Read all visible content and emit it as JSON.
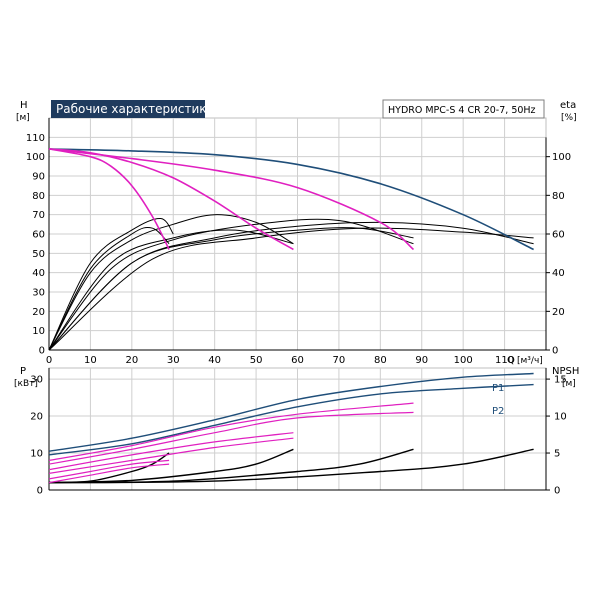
{
  "chart_data": [
    {
      "type": "line",
      "title": "Рабочие характеристики",
      "model": "HYDRO MPC-S 4 CR 20-7, 50Hz",
      "ylabel_left": "H",
      "ylabel_left_unit": "[м]",
      "ylabel_right": "eta",
      "ylabel_right_unit": "[%]",
      "xlabel": "Q",
      "xlabel_unit": "[м³/ч]",
      "xlim": [
        0,
        120
      ],
      "xticks": [
        0,
        10,
        20,
        30,
        40,
        50,
        60,
        70,
        80,
        90,
        100,
        110
      ],
      "ylim_left": [
        0,
        120
      ],
      "yticks_left": [
        0,
        10,
        20,
        30,
        40,
        50,
        60,
        70,
        80,
        90,
        100,
        110
      ],
      "ylim_right": [
        0,
        120
      ],
      "yticks_right": [
        0,
        20,
        40,
        60,
        80,
        100
      ],
      "grid": true,
      "head_series": [
        {
          "color": "#1f4e79",
          "points": [
            [
              0,
              104
            ],
            [
              20,
              103
            ],
            [
              40,
              101
            ],
            [
              60,
              96
            ],
            [
              80,
              86
            ],
            [
              100,
              70
            ],
            [
              117,
              52
            ]
          ]
        },
        {
          "color": "#e020c0",
          "points": [
            [
              0,
              104
            ],
            [
              20,
              99
            ],
            [
              40,
              93
            ],
            [
              60,
              84
            ],
            [
              80,
              66
            ],
            [
              88,
              52
            ]
          ]
        },
        {
          "color": "#e020c0",
          "points": [
            [
              0,
              104
            ],
            [
              10,
              102
            ],
            [
              20,
              97
            ],
            [
              30,
              89
            ],
            [
              40,
              77
            ],
            [
              50,
              63
            ],
            [
              59,
              52
            ]
          ]
        },
        {
          "color": "#e020c0",
          "points": [
            [
              0,
              104
            ],
            [
              10,
              100
            ],
            [
              15,
              95
            ],
            [
              20,
              85
            ],
            [
              25,
              69
            ],
            [
              29,
              52
            ]
          ]
        }
      ],
      "efficiency_series": [
        {
          "color": "#000000",
          "points": [
            [
              0,
              0
            ],
            [
              10,
              45
            ],
            [
              20,
              62
            ],
            [
              27,
              68
            ],
            [
              30,
              60
            ]
          ]
        },
        {
          "color": "#000000",
          "points": [
            [
              0,
              0
            ],
            [
              10,
              40
            ],
            [
              20,
              57
            ],
            [
              30,
              65
            ],
            [
              40,
              70
            ],
            [
              50,
              66
            ],
            [
              59,
              55
            ]
          ]
        },
        {
          "color": "#000000",
          "points": [
            [
              0,
              0
            ],
            [
              15,
              42
            ],
            [
              30,
              57
            ],
            [
              50,
              65
            ],
            [
              70,
              67
            ],
            [
              88,
              55
            ]
          ]
        },
        {
          "color": "#000000",
          "points": [
            [
              0,
              0
            ],
            [
              20,
              45
            ],
            [
              40,
              58
            ],
            [
              60,
              64
            ],
            [
              80,
              66
            ],
            [
              100,
              63
            ],
            [
              117,
              55
            ]
          ]
        },
        {
          "color": "#000000",
          "points": [
            [
              0,
              0
            ],
            [
              10,
              42
            ],
            [
              20,
              60
            ],
            [
              25,
              63
            ],
            [
              29,
              55
            ]
          ]
        },
        {
          "color": "#000000",
          "points": [
            [
              0,
              0
            ],
            [
              15,
              45
            ],
            [
              30,
              58
            ],
            [
              45,
              62
            ],
            [
              59,
              55
            ]
          ]
        },
        {
          "color": "#000000",
          "points": [
            [
              0,
              0
            ],
            [
              20,
              45
            ],
            [
              40,
              57
            ],
            [
              60,
              62
            ],
            [
              75,
              63
            ],
            [
              88,
              58
            ]
          ]
        },
        {
          "color": "#000000",
          "points": [
            [
              0,
              0
            ],
            [
              25,
              47
            ],
            [
              50,
              58
            ],
            [
              75,
              63
            ],
            [
              100,
              61
            ],
            [
              117,
              58
            ]
          ]
        }
      ]
    },
    {
      "type": "line",
      "ylabel_left": "P",
      "ylabel_left_unit": "[кВт]",
      "ylabel_right": "NPSH",
      "ylabel_right_unit": "[м]",
      "xlim": [
        0,
        120
      ],
      "ylim_left": [
        0,
        33
      ],
      "yticks_left": [
        0,
        10,
        20,
        30
      ],
      "ylim_right": [
        0,
        16.5
      ],
      "yticks_right": [
        0,
        5,
        10,
        15
      ],
      "grid": true,
      "legend": [
        "P1",
        "P2"
      ],
      "power_series": [
        {
          "name": "P1",
          "color": "#1f4e79",
          "points": [
            [
              0,
              10.5
            ],
            [
              20,
              14
            ],
            [
              40,
              19
            ],
            [
              60,
              24.5
            ],
            [
              80,
              28
            ],
            [
              100,
              30.5
            ],
            [
              117,
              31.5
            ]
          ]
        },
        {
          "name": "P2",
          "color": "#1f4e79",
          "points": [
            [
              0,
              9.5
            ],
            [
              20,
              12.5
            ],
            [
              40,
              17.5
            ],
            [
              60,
              22.5
            ],
            [
              80,
              26
            ],
            [
              100,
              27.5
            ],
            [
              117,
              28.5
            ]
          ]
        },
        {
          "name": "",
          "color": "#e020c0",
          "points": [
            [
              0,
              8
            ],
            [
              20,
              12
            ],
            [
              40,
              17
            ],
            [
              60,
              20.5
            ],
            [
              88,
              23.5
            ]
          ]
        },
        {
          "name": "",
          "color": "#e020c0",
          "points": [
            [
              0,
              7
            ],
            [
              20,
              11
            ],
            [
              40,
              15.5
            ],
            [
              60,
              19.5
            ],
            [
              88,
              21
            ]
          ]
        },
        {
          "name": "",
          "color": "#e020c0",
          "points": [
            [
              0,
              5.5
            ],
            [
              20,
              9.5
            ],
            [
              40,
              13
            ],
            [
              59,
              15.5
            ]
          ]
        },
        {
          "name": "",
          "color": "#e020c0",
          "points": [
            [
              0,
              4.5
            ],
            [
              20,
              8
            ],
            [
              40,
              11.5
            ],
            [
              59,
              14
            ]
          ]
        },
        {
          "name": "",
          "color": "#e020c0",
          "points": [
            [
              0,
              3
            ],
            [
              10,
              5
            ],
            [
              20,
              7
            ],
            [
              29,
              8
            ]
          ]
        },
        {
          "name": "",
          "color": "#e020c0",
          "points": [
            [
              0,
              2
            ],
            [
              10,
              4
            ],
            [
              20,
              6
            ],
            [
              29,
              7
            ]
          ]
        }
      ],
      "npsh_series": [
        {
          "color": "#000000",
          "points": [
            [
              0,
              1
            ],
            [
              10,
              1.2
            ],
            [
              20,
              2.5
            ],
            [
              25,
              3.5
            ],
            [
              29,
              5
            ]
          ]
        },
        {
          "color": "#000000",
          "points": [
            [
              0,
              1
            ],
            [
              20,
              1.3
            ],
            [
              40,
              2.5
            ],
            [
              50,
              3.5
            ],
            [
              59,
              5.5
            ]
          ]
        },
        {
          "color": "#000000",
          "points": [
            [
              0,
              1
            ],
            [
              30,
              1.2
            ],
            [
              60,
              2.5
            ],
            [
              75,
              3.5
            ],
            [
              88,
              5.5
            ]
          ]
        },
        {
          "color": "#000000",
          "points": [
            [
              0,
              1
            ],
            [
              40,
              1.2
            ],
            [
              80,
              2.5
            ],
            [
              100,
              3.5
            ],
            [
              117,
              5.5
            ]
          ]
        }
      ],
      "xticks": [
        0,
        10,
        20,
        30,
        40,
        50,
        60,
        70,
        80,
        90,
        100,
        110
      ]
    }
  ]
}
